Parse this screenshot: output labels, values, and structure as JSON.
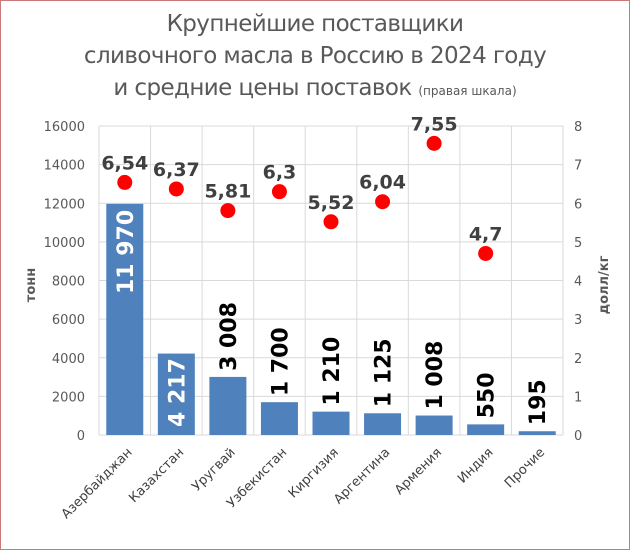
{
  "title": {
    "line1": "Крупнейшие поставщики",
    "line2": "сливочного масла в Россию в 2024 году",
    "line3": "и средние цены поставок",
    "line3_note": "(правая шкала)"
  },
  "colors": {
    "bar": "#4f81bd",
    "dot": "#ff0000",
    "grid": "#d9d9d9",
    "border": "#c9797a"
  },
  "chart_data": {
    "type": "bar",
    "title": "Крупнейшие поставщики сливочного масла в Россию в 2024 году и средние цены поставок (правая шкала)",
    "categories": [
      "Азербайджан",
      "Казахстан",
      "Уругвай",
      "Узбекистан",
      "Киргизия",
      "Аргентина",
      "Армения",
      "Индия",
      "Прочие"
    ],
    "series": [
      {
        "name": "тонн",
        "type": "bar",
        "axis": "left",
        "values": [
          11970,
          4217,
          3008,
          1700,
          1210,
          1125,
          1008,
          550,
          195
        ],
        "labels": [
          "11 970",
          "4 217",
          "3 008",
          "1 700",
          "1 210",
          "1 125",
          "1 008",
          "550",
          "195"
        ]
      },
      {
        "name": "долл/кг",
        "type": "scatter",
        "axis": "right",
        "values": [
          6.54,
          6.37,
          5.81,
          6.3,
          5.52,
          6.04,
          7.55,
          4.7,
          null
        ],
        "labels": [
          "6,54",
          "6,37",
          "5,81",
          "6,3",
          "5,52",
          "6,04",
          "7,55",
          "4,7",
          ""
        ]
      }
    ],
    "xlabel": "",
    "ylabel": "тонн",
    "y2label": "долл/кг",
    "ylim": [
      0,
      16000
    ],
    "y2lim": [
      0,
      8
    ],
    "yticks": [
      "0",
      "2000",
      "4000",
      "6000",
      "8000",
      "10000",
      "12000",
      "14000",
      "16000"
    ],
    "y2ticks": [
      "0",
      "1",
      "2",
      "3",
      "4",
      "5",
      "6",
      "7",
      "8"
    ],
    "grid": true,
    "legend": "none"
  }
}
